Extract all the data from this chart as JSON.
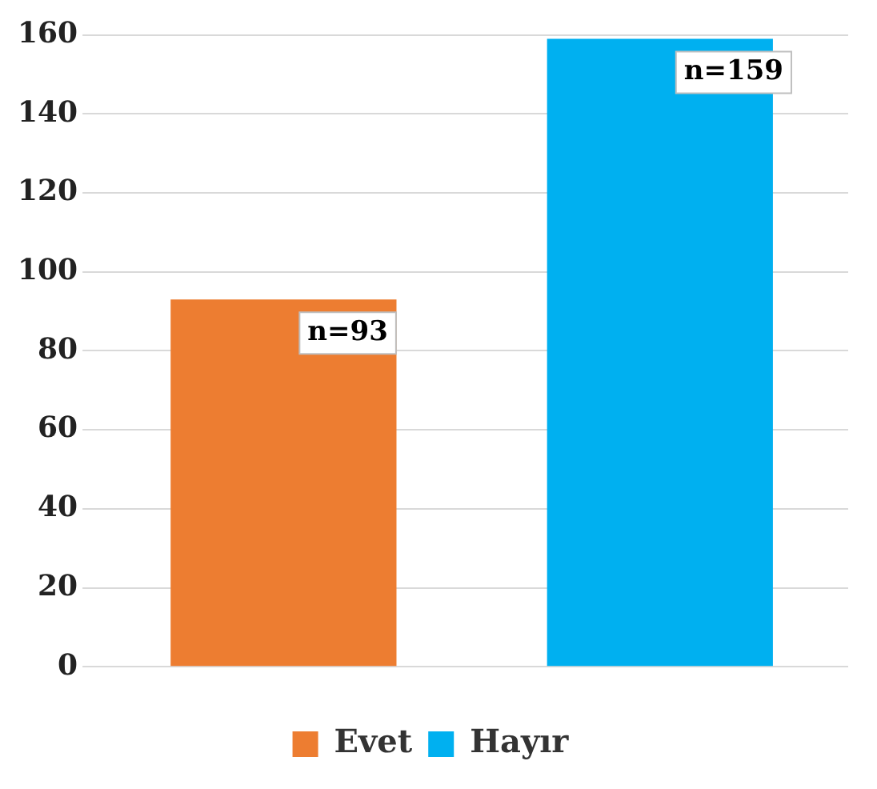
{
  "chart_data": {
    "type": "bar",
    "categories": [
      null,
      null
    ],
    "series": [
      {
        "name": "Evet",
        "color": "#ed7d31",
        "values": [
          93,
          null
        ],
        "value_labels": [
          "n=93",
          null
        ]
      },
      {
        "name": "Hayır",
        "color": "#00b0f0",
        "values": [
          null,
          159
        ],
        "value_labels": [
          null,
          "n=159"
        ]
      }
    ],
    "ylim": [
      0,
      160
    ],
    "yticks": [
      0,
      20,
      40,
      60,
      80,
      100,
      120,
      140,
      160
    ],
    "grid": "y",
    "legend": "bottom"
  }
}
